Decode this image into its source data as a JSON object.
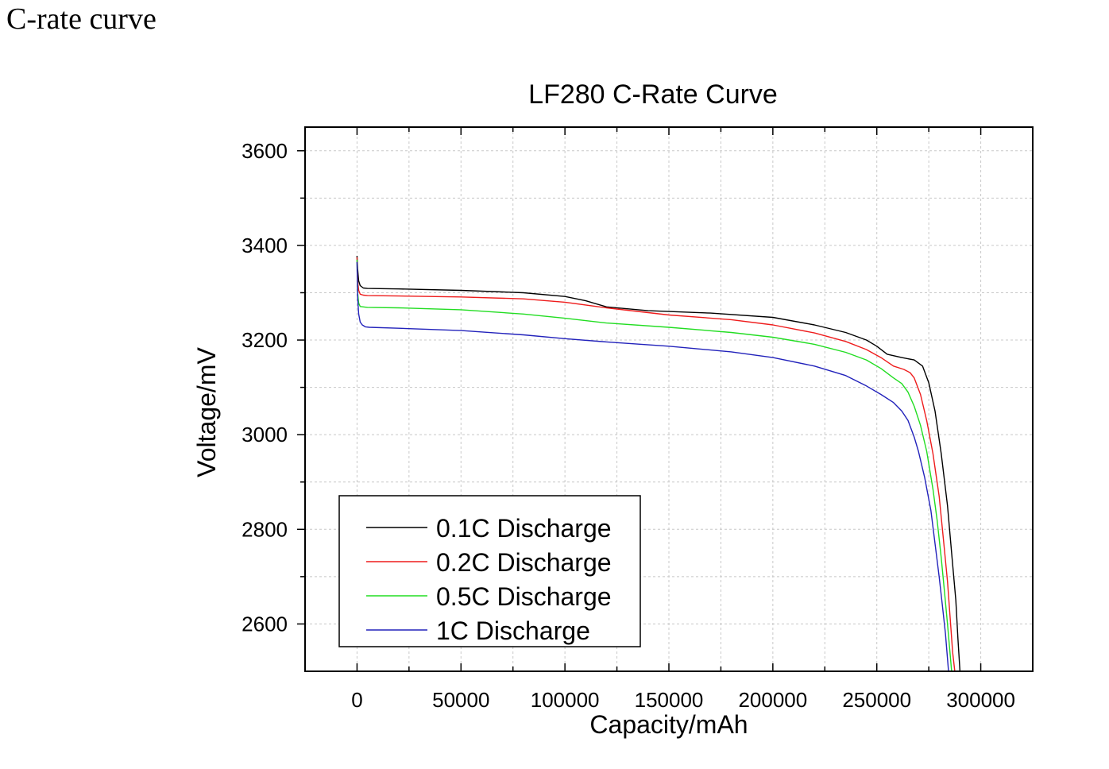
{
  "heading": "C-rate curve",
  "chart_data": {
    "type": "line",
    "title": "LF280 C-Rate Curve",
    "xlabel": "Capacity/mAh",
    "ylabel": "Voltage/mV",
    "xlim": [
      -25000,
      325000
    ],
    "ylim": [
      2500,
      3650
    ],
    "xticks": [
      0,
      50000,
      100000,
      150000,
      200000,
      250000,
      300000
    ],
    "yticks": [
      2600,
      2800,
      3000,
      3200,
      3400,
      3600
    ],
    "grid": true,
    "legend_position": "bottom-left",
    "series": [
      {
        "name": "0.1C Discharge",
        "color": "#000000",
        "x": [
          0,
          300,
          800,
          1500,
          3000,
          5000,
          20000,
          50000,
          80000,
          100000,
          110000,
          120000,
          140000,
          170000,
          200000,
          220000,
          235000,
          245000,
          250000,
          255000,
          262000,
          268000,
          272000,
          275000,
          278000,
          281000,
          284000,
          286000,
          288000,
          289000,
          290000
        ],
        "y": [
          3378,
          3350,
          3325,
          3315,
          3310,
          3309,
          3308,
          3305,
          3300,
          3292,
          3283,
          3270,
          3262,
          3257,
          3248,
          3232,
          3216,
          3200,
          3187,
          3170,
          3163,
          3158,
          3145,
          3110,
          3050,
          2960,
          2850,
          2750,
          2650,
          2570,
          2500
        ]
      },
      {
        "name": "0.2C Discharge",
        "color": "#ee1c1c",
        "x": [
          0,
          300,
          800,
          1500,
          3000,
          5000,
          20000,
          50000,
          80000,
          100000,
          120000,
          150000,
          180000,
          200000,
          220000,
          235000,
          245000,
          252000,
          258000,
          263000,
          266000,
          268000,
          271000,
          274000,
          277000,
          280000,
          282000,
          284000,
          285500,
          286500,
          287500
        ],
        "y": [
          3375,
          3325,
          3305,
          3297,
          3295,
          3294,
          3293,
          3291,
          3287,
          3280,
          3268,
          3253,
          3243,
          3232,
          3215,
          3197,
          3180,
          3163,
          3145,
          3138,
          3131,
          3120,
          3085,
          3030,
          2960,
          2870,
          2780,
          2690,
          2600,
          2540,
          2500
        ]
      },
      {
        "name": "0.5C Discharge",
        "color": "#22dd22",
        "x": [
          0,
          300,
          800,
          1500,
          3000,
          5000,
          20000,
          50000,
          80000,
          100000,
          120000,
          150000,
          180000,
          200000,
          220000,
          235000,
          245000,
          252000,
          258000,
          262000,
          265000,
          268000,
          271000,
          274000,
          277000,
          279000,
          281000,
          282500,
          284000,
          285000,
          286000
        ],
        "y": [
          3370,
          3300,
          3278,
          3271,
          3270,
          3269,
          3268,
          3264,
          3255,
          3246,
          3236,
          3227,
          3216,
          3206,
          3191,
          3174,
          3158,
          3140,
          3120,
          3108,
          3090,
          3060,
          3020,
          2965,
          2885,
          2820,
          2740,
          2670,
          2600,
          2550,
          2500
        ]
      },
      {
        "name": "1C Discharge",
        "color": "#2222bb",
        "x": [
          0,
          300,
          800,
          1500,
          2500,
          4000,
          6000,
          20000,
          50000,
          80000,
          100000,
          120000,
          150000,
          180000,
          200000,
          220000,
          235000,
          245000,
          252000,
          258000,
          262000,
          265000,
          268000,
          270000,
          273000,
          276000,
          278000,
          280000,
          281500,
          283000,
          284500
        ],
        "y": [
          3365,
          3290,
          3255,
          3238,
          3232,
          3228,
          3227,
          3225,
          3220,
          3211,
          3203,
          3196,
          3187,
          3175,
          3163,
          3145,
          3125,
          3103,
          3085,
          3068,
          3050,
          3030,
          2995,
          2965,
          2910,
          2840,
          2770,
          2700,
          2640,
          2580,
          2500
        ]
      }
    ]
  }
}
